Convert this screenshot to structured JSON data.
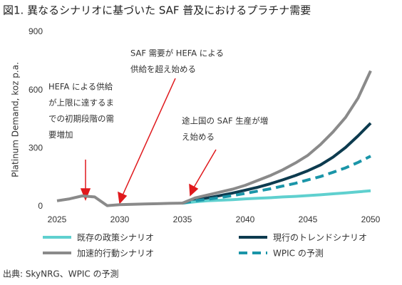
{
  "chart_data": {
    "type": "line",
    "title": "図1. 異なるシナリオに基づいた SAF 普及におけるプラチナ需要",
    "y_label": "Platinum Demand, koz p.a.",
    "x": [
      2025,
      2026,
      2027,
      2028,
      2029,
      2030,
      2031,
      2032,
      2033,
      2034,
      2035,
      2036,
      2037,
      2038,
      2039,
      2040,
      2041,
      2042,
      2043,
      2044,
      2045,
      2046,
      2047,
      2048,
      2049,
      2050
    ],
    "xlim": [
      2025,
      2050
    ],
    "xticks": [
      2025,
      2030,
      2035,
      2040,
      2045,
      2050
    ],
    "ylim": [
      0,
      900
    ],
    "yticks": [
      0,
      300,
      600,
      900
    ],
    "grid": false,
    "series": [
      {
        "name": "既存の政策シナリオ",
        "color": "#5fd0cf",
        "dashed": false,
        "values": [
          null,
          null,
          null,
          null,
          null,
          null,
          null,
          null,
          null,
          null,
          18,
          25,
          30,
          33,
          36,
          40,
          43,
          46,
          50,
          53,
          57,
          61,
          66,
          71,
          76,
          82
        ]
      },
      {
        "name": "加速的行動シナリオ",
        "color": "#8a8a8a",
        "dashed": false,
        "values": [
          30,
          40,
          55,
          50,
          5,
          10,
          12,
          14,
          15,
          17,
          18,
          45,
          60,
          75,
          90,
          110,
          135,
          160,
          190,
          225,
          265,
          320,
          385,
          460,
          560,
          700
        ]
      },
      {
        "name": "現行のトレンドシナリオ",
        "color": "#0d3b4f",
        "dashed": false,
        "values": [
          null,
          null,
          null,
          null,
          null,
          null,
          null,
          null,
          null,
          null,
          18,
          35,
          45,
          57,
          70,
          85,
          100,
          118,
          138,
          160,
          185,
          215,
          255,
          305,
          365,
          430
        ]
      },
      {
        "name": "WPIC の予測",
        "color": "#1a95a8",
        "dashed": true,
        "values": [
          null,
          null,
          null,
          null,
          null,
          null,
          null,
          null,
          null,
          null,
          18,
          30,
          38,
          47,
          57,
          68,
          80,
          92,
          106,
          120,
          138,
          155,
          177,
          200,
          228,
          260
        ]
      }
    ],
    "annotations": [
      {
        "lines": [
          "HEFA による供給",
          "が上限に達するま",
          "での初期段階の需",
          "要増加"
        ]
      },
      {
        "lines": [
          "SAF 需要が HEFA による",
          "供給を超え始める"
        ]
      },
      {
        "lines": [
          "途上国の SAF 生産が増",
          "え始める"
        ]
      }
    ],
    "source": "出典: SkyNRG、WPIC の予測"
  }
}
